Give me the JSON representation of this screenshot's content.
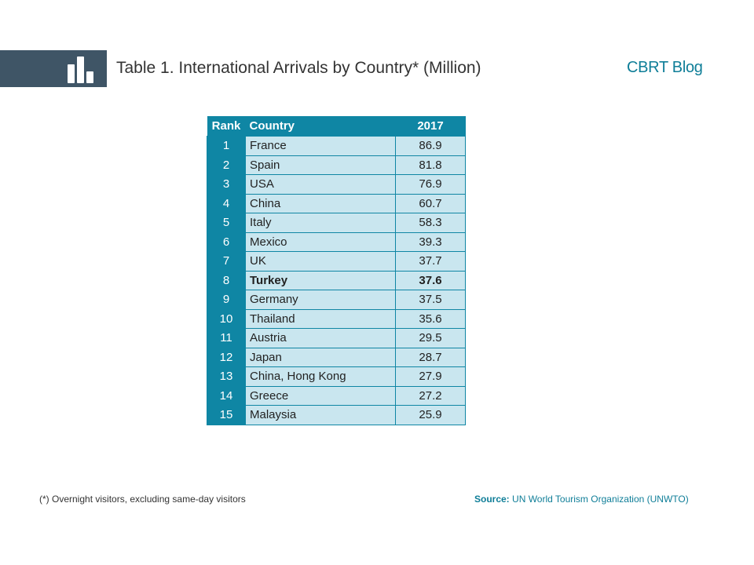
{
  "header": {
    "title_lead": "Table 1.",
    "title_rest": " International Arrivals by Country* (Million)",
    "brand": "CBRT Blog",
    "icon": "bar-chart-icon"
  },
  "table": {
    "headers": {
      "rank": "Rank",
      "country": "Country",
      "year": "2017"
    },
    "rows": [
      {
        "rank": "1",
        "country": "France",
        "value": "86.9"
      },
      {
        "rank": "2",
        "country": "Spain",
        "value": "81.8"
      },
      {
        "rank": "3",
        "country": "USA",
        "value": "76.9"
      },
      {
        "rank": "4",
        "country": "China",
        "value": "60.7"
      },
      {
        "rank": "5",
        "country": "Italy",
        "value": "58.3"
      },
      {
        "rank": "6",
        "country": "Mexico",
        "value": "39.3"
      },
      {
        "rank": "7",
        "country": "UK",
        "value": "37.7"
      },
      {
        "rank": "8",
        "country": "Turkey",
        "value": "37.6"
      },
      {
        "rank": "9",
        "country": "Germany",
        "value": "37.5"
      },
      {
        "rank": "10",
        "country": "Thailand",
        "value": "35.6"
      },
      {
        "rank": "11",
        "country": "Austria",
        "value": "29.5"
      },
      {
        "rank": "12",
        "country": "Japan",
        "value": "28.7"
      },
      {
        "rank": "13",
        "country": "China, Hong Kong",
        "value": "27.9"
      },
      {
        "rank": "14",
        "country": "Greece",
        "value": "27.2"
      },
      {
        "rank": "15",
        "country": "Malaysia",
        "value": "25.9"
      }
    ],
    "highlight_row": "8"
  },
  "footer": {
    "footnote": "(*) Overnight visitors, excluding same-day visitors",
    "source_label": "Source:",
    "source_text": " UN World Tourism Organization (UNWTO)"
  },
  "colors": {
    "header_bar": "#3f5566",
    "accent": "#0f86a4",
    "cell_fill": "#c9e6ef",
    "brand": "#0f7e98"
  }
}
